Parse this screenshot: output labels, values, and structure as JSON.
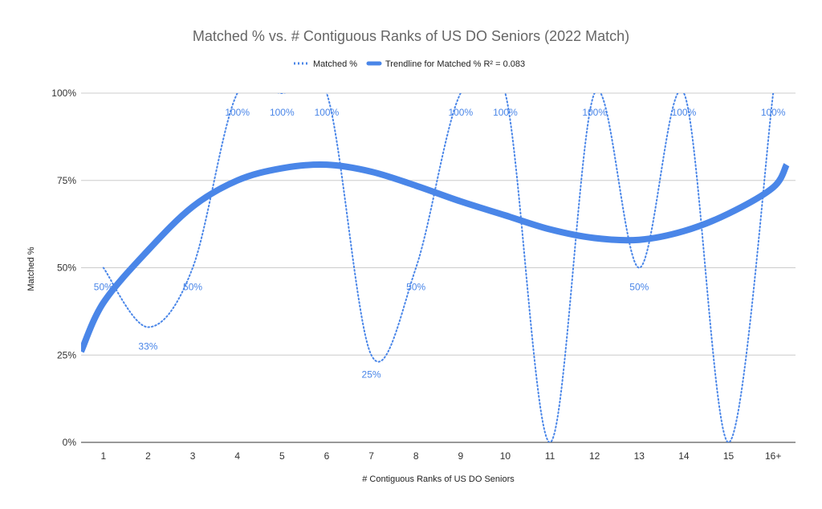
{
  "chart_data": {
    "type": "line",
    "title": "Matched % vs. # Contiguous Ranks of US DO Seniors (2022 Match)",
    "xlabel": "# Contiguous Ranks of US DO Seniors",
    "ylabel": "Matched %",
    "categories": [
      "1",
      "2",
      "3",
      "4",
      "5",
      "6",
      "7",
      "8",
      "9",
      "10",
      "11",
      "12",
      "13",
      "14",
      "15",
      "16+"
    ],
    "series": [
      {
        "name": "Matched %",
        "style": "dotted",
        "color": "#4a86e8",
        "values": [
          50,
          33,
          50,
          100,
          100,
          100,
          25,
          50,
          100,
          100,
          0,
          100,
          50,
          100,
          0,
          100
        ],
        "labels": [
          "50%",
          "33%",
          "50%",
          "100%",
          "100%",
          "100%",
          "25%",
          "50%",
          "100%",
          "100%",
          "",
          "100%",
          "50%",
          "100%",
          "",
          "100%"
        ]
      },
      {
        "name": "Trendline for Matched % R² = 0.083",
        "style": "solid-thick",
        "color": "#4a86e8",
        "points": [
          [
            0.5,
            26
          ],
          [
            1,
            40
          ],
          [
            2,
            55
          ],
          [
            3,
            67.5
          ],
          [
            4,
            75
          ],
          [
            5,
            78.5
          ],
          [
            6,
            79.5
          ],
          [
            7,
            77.5
          ],
          [
            8,
            73.5
          ],
          [
            9,
            69
          ],
          [
            10,
            65
          ],
          [
            11,
            61
          ],
          [
            12,
            58.5
          ],
          [
            13,
            58
          ],
          [
            14,
            60.5
          ],
          [
            15,
            65.5
          ],
          [
            16,
            73
          ],
          [
            16.3,
            79.5
          ]
        ]
      }
    ],
    "yticks": [
      "0%",
      "25%",
      "50%",
      "75%",
      "100%"
    ],
    "ylim": [
      0,
      100
    ],
    "grid": true,
    "legend": "top-center"
  }
}
